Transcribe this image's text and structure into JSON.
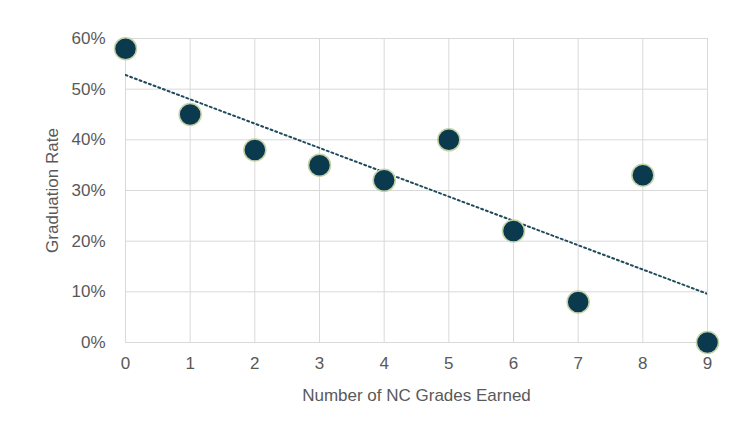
{
  "chart_data": {
    "type": "scatter",
    "x_label": "Number of NC Grades Earned",
    "y_label": "Graduation Rate",
    "x": [
      0,
      1,
      2,
      3,
      4,
      5,
      6,
      7,
      8,
      9
    ],
    "series": [
      {
        "type": "line",
        "line_style": "dotted",
        "color": "#1f4b5c",
        "values": [
          52.8,
          48.0,
          43.2,
          38.4,
          33.6,
          28.8,
          24.0,
          19.2,
          14.4,
          9.6
        ]
      },
      {
        "type": "scatter",
        "marker": "circle",
        "color": "#0b3a4f",
        "values": [
          58,
          45,
          38,
          35,
          32,
          40,
          22,
          8,
          33,
          0
        ]
      }
    ],
    "xlim": [
      0,
      9
    ],
    "xticks": [
      0,
      1,
      2,
      3,
      4,
      5,
      6,
      7,
      8,
      9
    ],
    "ylim": [
      0,
      60
    ],
    "yticks": [
      {
        "value": 0,
        "label": "0%"
      },
      {
        "value": 10,
        "label": "10%"
      },
      {
        "value": 20,
        "label": "20%"
      },
      {
        "value": 30,
        "label": "30%"
      },
      {
        "value": 40,
        "label": "40%"
      },
      {
        "value": 50,
        "label": "50%"
      },
      {
        "value": 60,
        "label": "60%"
      }
    ],
    "grid": true
  }
}
